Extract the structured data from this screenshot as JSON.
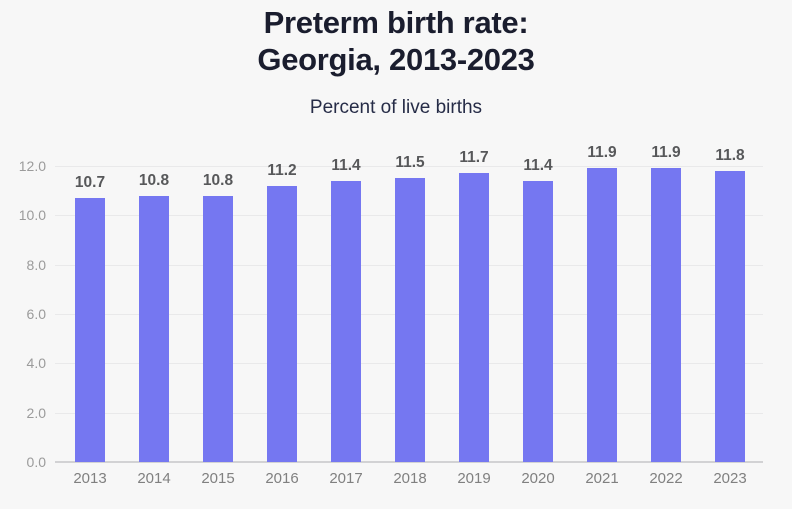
{
  "page": {
    "title": "Preterm birth rate:\nGeorgia, 2013-2023",
    "subtitle": "Percent of live births"
  },
  "colors": {
    "background": "#f7f7f7",
    "bar": "#7577f1",
    "title_text": "#1a1d2e",
    "subtitle_text": "#262c47",
    "ytick_text": "#9b9b9b",
    "xtick_text": "#808080",
    "value_label_text": "#57585a",
    "gridline": "#e9e9ea",
    "baseline": "#d2d2d4"
  },
  "chart_data": {
    "type": "bar",
    "title": "Preterm birth rate: Georgia, 2013-2023",
    "subtitle": "Percent of live births",
    "categories": [
      "2013",
      "2014",
      "2015",
      "2016",
      "2017",
      "2018",
      "2019",
      "2020",
      "2021",
      "2022",
      "2023"
    ],
    "values": [
      10.7,
      10.8,
      10.8,
      11.2,
      11.4,
      11.5,
      11.7,
      11.4,
      11.9,
      11.9,
      11.8
    ],
    "xlabel": "",
    "ylabel": "Percent of live births",
    "ylim": [
      0,
      12
    ],
    "yticks": [
      0,
      2,
      4,
      6,
      8,
      10,
      12
    ],
    "ytick_labels": [
      "0.0",
      "2.0",
      "4.0",
      "6.0",
      "8.0",
      "10.0",
      "12.0"
    ],
    "grid": true,
    "legend": false,
    "value_labels": true
  }
}
